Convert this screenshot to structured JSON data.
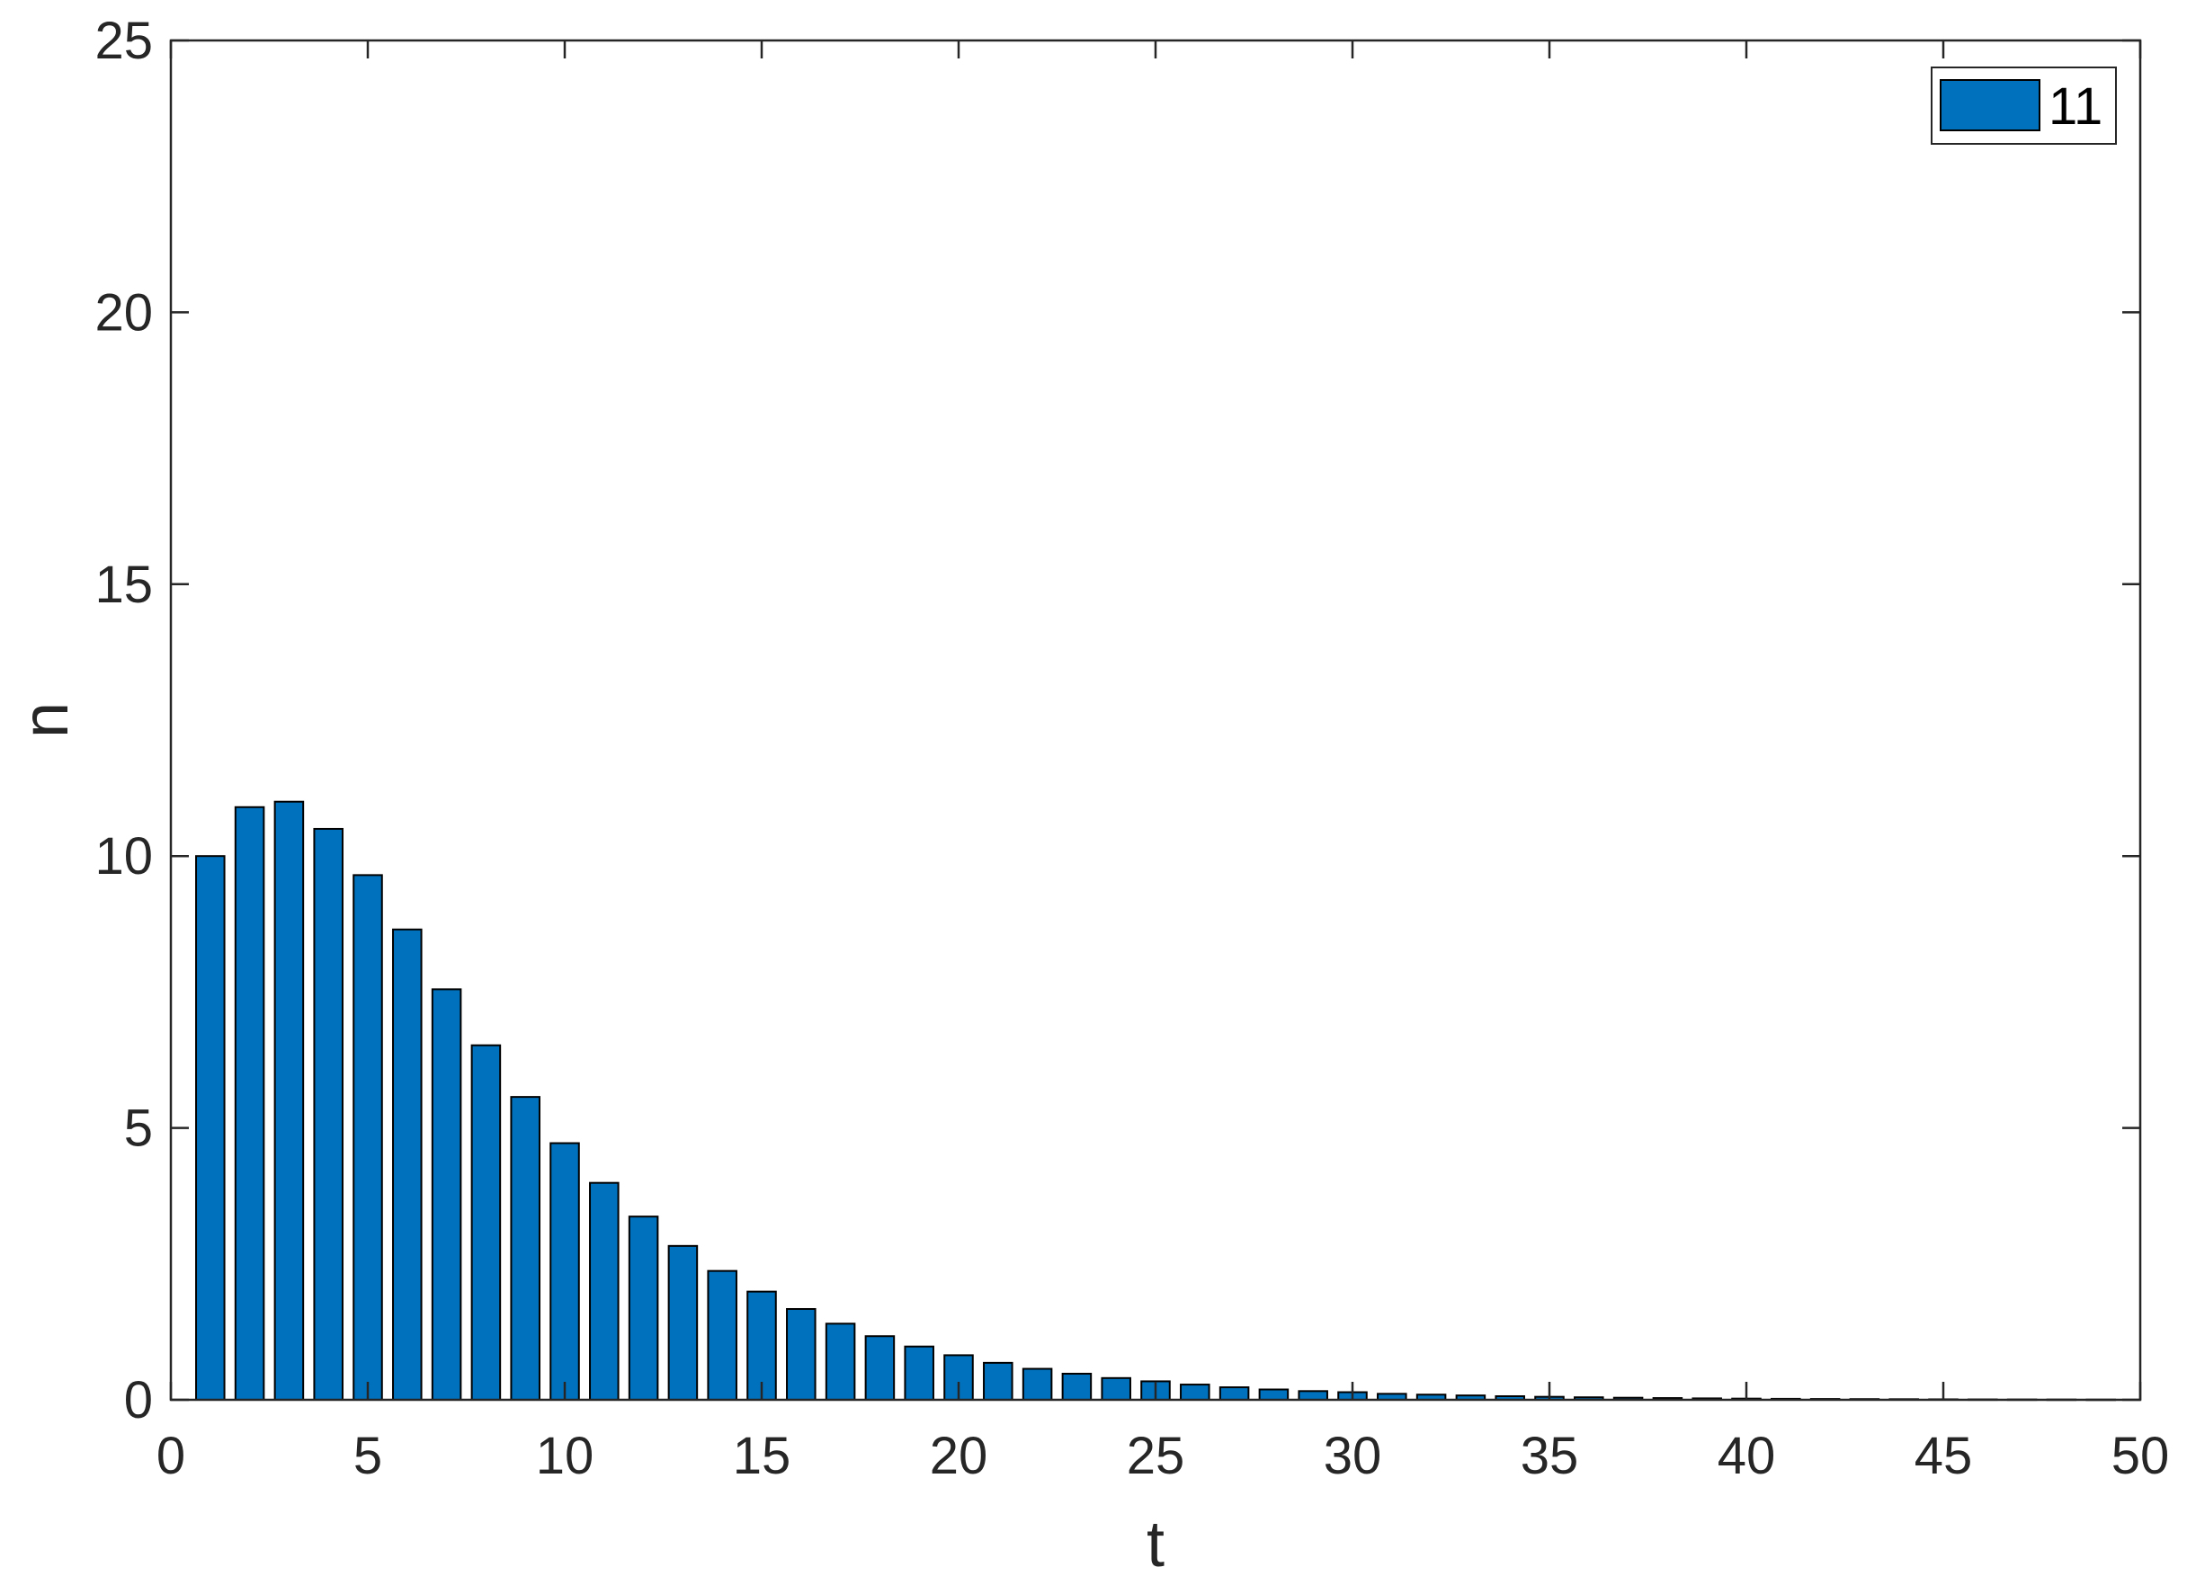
{
  "chart_data": {
    "type": "bar",
    "xlabel": "t",
    "ylabel": "n",
    "xlim": [
      0,
      50
    ],
    "ylim": [
      0,
      25
    ],
    "xticks": [
      "0",
      "5",
      "10",
      "15",
      "20",
      "25",
      "30",
      "35",
      "40",
      "45",
      "50"
    ],
    "yticks": [
      "0",
      "5",
      "10",
      "15",
      "20",
      "25"
    ],
    "grid": false,
    "legend_position": "top-right",
    "bar_color": "#0072BD",
    "series": [
      {
        "name": "11",
        "x": [
          1,
          2,
          3,
          4,
          5,
          6,
          7,
          8,
          9,
          10,
          11,
          12,
          13,
          14,
          15,
          16,
          17,
          18,
          19,
          20,
          21,
          22,
          23,
          24,
          25,
          26,
          27,
          28,
          29,
          30,
          31,
          32,
          33,
          34,
          35,
          36,
          37,
          38,
          39,
          40,
          41,
          42,
          43,
          44,
          45,
          46,
          47,
          48,
          49
        ],
        "values": [
          10.0,
          10.9,
          11.0,
          10.5,
          9.65,
          8.65,
          7.55,
          6.52,
          5.57,
          4.72,
          3.99,
          3.37,
          2.83,
          2.37,
          1.99,
          1.67,
          1.4,
          1.17,
          0.98,
          0.82,
          0.68,
          0.57,
          0.48,
          0.4,
          0.34,
          0.28,
          0.23,
          0.19,
          0.16,
          0.14,
          0.11,
          0.095,
          0.08,
          0.066,
          0.055,
          0.046,
          0.038,
          0.032,
          0.026,
          0.022,
          0.018,
          0.015,
          0.013,
          0.011,
          0.009,
          0.007,
          0.006,
          0.005,
          0.004
        ]
      }
    ]
  }
}
